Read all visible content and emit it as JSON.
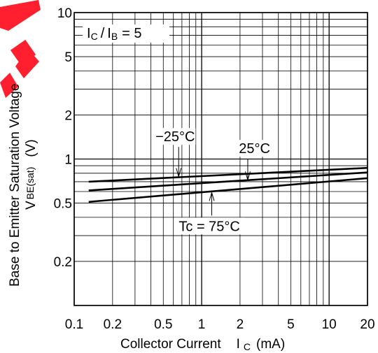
{
  "chart_data": {
    "type": "line",
    "x_scale": "log",
    "y_scale": "log",
    "xlim": [
      0.1,
      20
    ],
    "ylim": [
      0.1,
      10
    ],
    "grid": true,
    "x_ticks": [
      "0.1",
      "0.2",
      "0.5",
      "1",
      "2",
      "5",
      "10",
      "20"
    ],
    "x_tick_values": [
      0.1,
      0.2,
      0.5,
      1,
      2,
      5,
      10,
      20
    ],
    "y_ticks": [
      "10",
      "5",
      "2",
      "1",
      "0.5",
      "0.2"
    ],
    "y_tick_values": [
      10,
      5,
      2,
      1,
      0.5,
      0.2
    ],
    "xlabel": "Collector Current",
    "xlabel_symbol": "I",
    "xlabel_sub": "C",
    "xlabel_unit": "(mA)",
    "ylabel": "Base to Emitter Saturation Voltage",
    "ylabel_symbol": "V",
    "ylabel_sub": "BE(sat)",
    "ylabel_unit": "(V)",
    "condition": {
      "lhs_symbol": "I",
      "lhs_sub": "C",
      "slash": "/",
      "rhs_symbol": "I",
      "rhs_sub": "B",
      "rhs_value": "= 5"
    },
    "series": [
      {
        "name": "−25°C",
        "x": [
          0.13,
          20
        ],
        "y": [
          0.7,
          0.87
        ],
        "label_x": 0.62,
        "label_y": 1.35,
        "arrow_to": [
          0.66,
          0.76
        ]
      },
      {
        "name": "25°C",
        "x": [
          0.13,
          20
        ],
        "y": [
          0.61,
          0.81
        ],
        "label_x": 2.6,
        "label_y": 1.12,
        "arrow_to": [
          2.3,
          0.72
        ]
      },
      {
        "name": "75°C",
        "label_prefix": "Tc = ",
        "x": [
          0.13,
          20
        ],
        "y": [
          0.51,
          0.74
        ],
        "label_x": 1.15,
        "label_y": 0.33,
        "arrow_to": [
          1.2,
          0.59
        ]
      }
    ]
  }
}
